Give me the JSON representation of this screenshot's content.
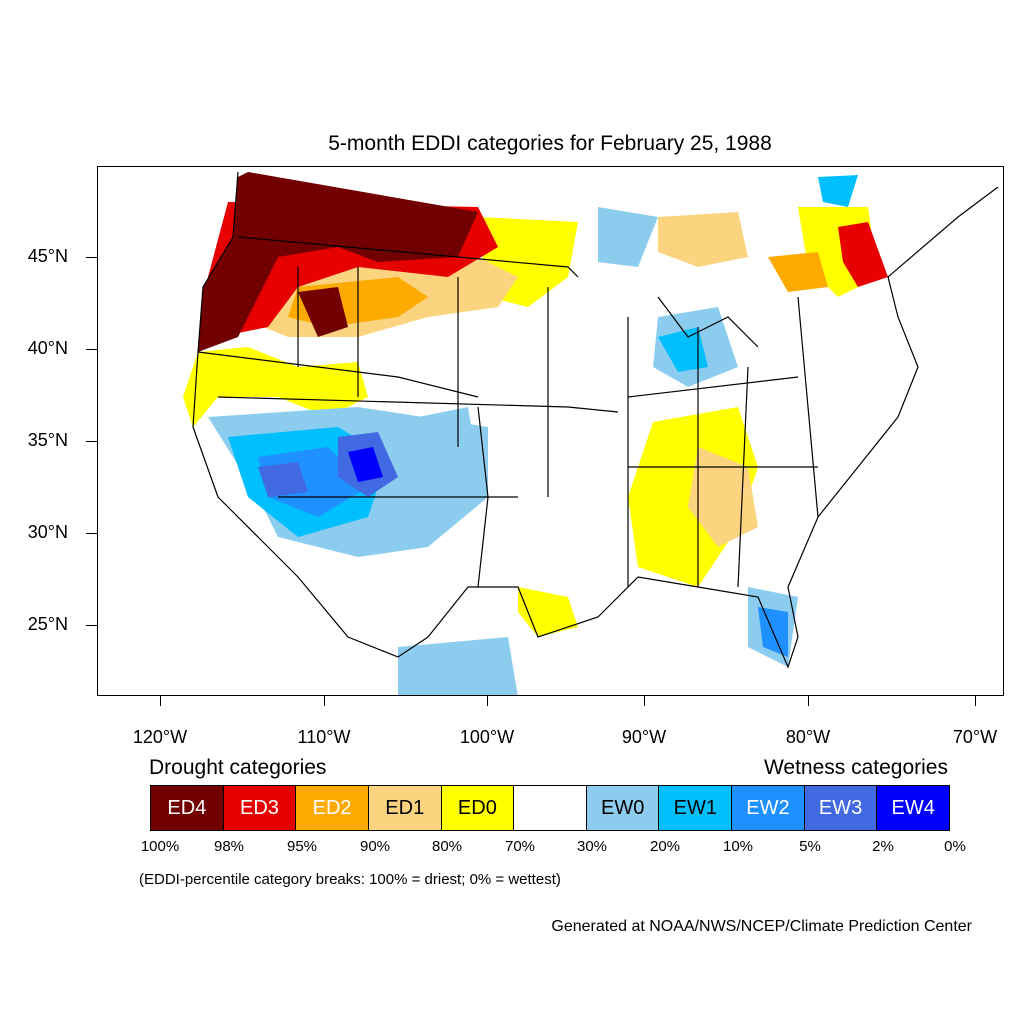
{
  "title": "5-month EDDI categories for February 25, 1988",
  "lat_labels": [
    "45°N",
    "40°N",
    "35°N",
    "30°N",
    "25°N"
  ],
  "lon_labels": [
    "120°W",
    "110°W",
    "100°W",
    "90°W",
    "80°W",
    "70°W"
  ],
  "legend": {
    "drought_title": "Drought categories",
    "wetness_title": "Wetness categories",
    "categories": [
      {
        "label": "ED4",
        "color": "#730000",
        "text_color": "#ffffff"
      },
      {
        "label": "ED3",
        "color": "#e60000",
        "text_color": "#ffffff"
      },
      {
        "label": "ED2",
        "color": "#ffaa00",
        "text_color": "#ffffff"
      },
      {
        "label": "ED1",
        "color": "#fcd37f",
        "text_color": "#000000"
      },
      {
        "label": "ED0",
        "color": "#ffff00",
        "text_color": "#000000"
      },
      {
        "label": "",
        "color": "#ffffff",
        "text_color": "#000000"
      },
      {
        "label": "EW0",
        "color": "#8ccdef",
        "text_color": "#000000"
      },
      {
        "label": "EW1",
        "color": "#00bfff",
        "text_color": "#000000"
      },
      {
        "label": "EW2",
        "color": "#1e90ff",
        "text_color": "#ffffff"
      },
      {
        "label": "EW3",
        "color": "#4169e1",
        "text_color": "#ffffff"
      },
      {
        "label": "EW4",
        "color": "#0000ff",
        "text_color": "#ffffff"
      }
    ],
    "breaks": [
      "100%",
      "98%",
      "95%",
      "90%",
      "80%",
      "70%",
      "30%",
      "20%",
      "10%",
      "5%",
      "2%",
      "0%"
    ]
  },
  "breaks_note": "(EDDI-percentile category breaks: 100% = driest; 0% = wettest)",
  "credit": "Generated at NOAA/NWS/NCEP/Climate Prediction Center"
}
